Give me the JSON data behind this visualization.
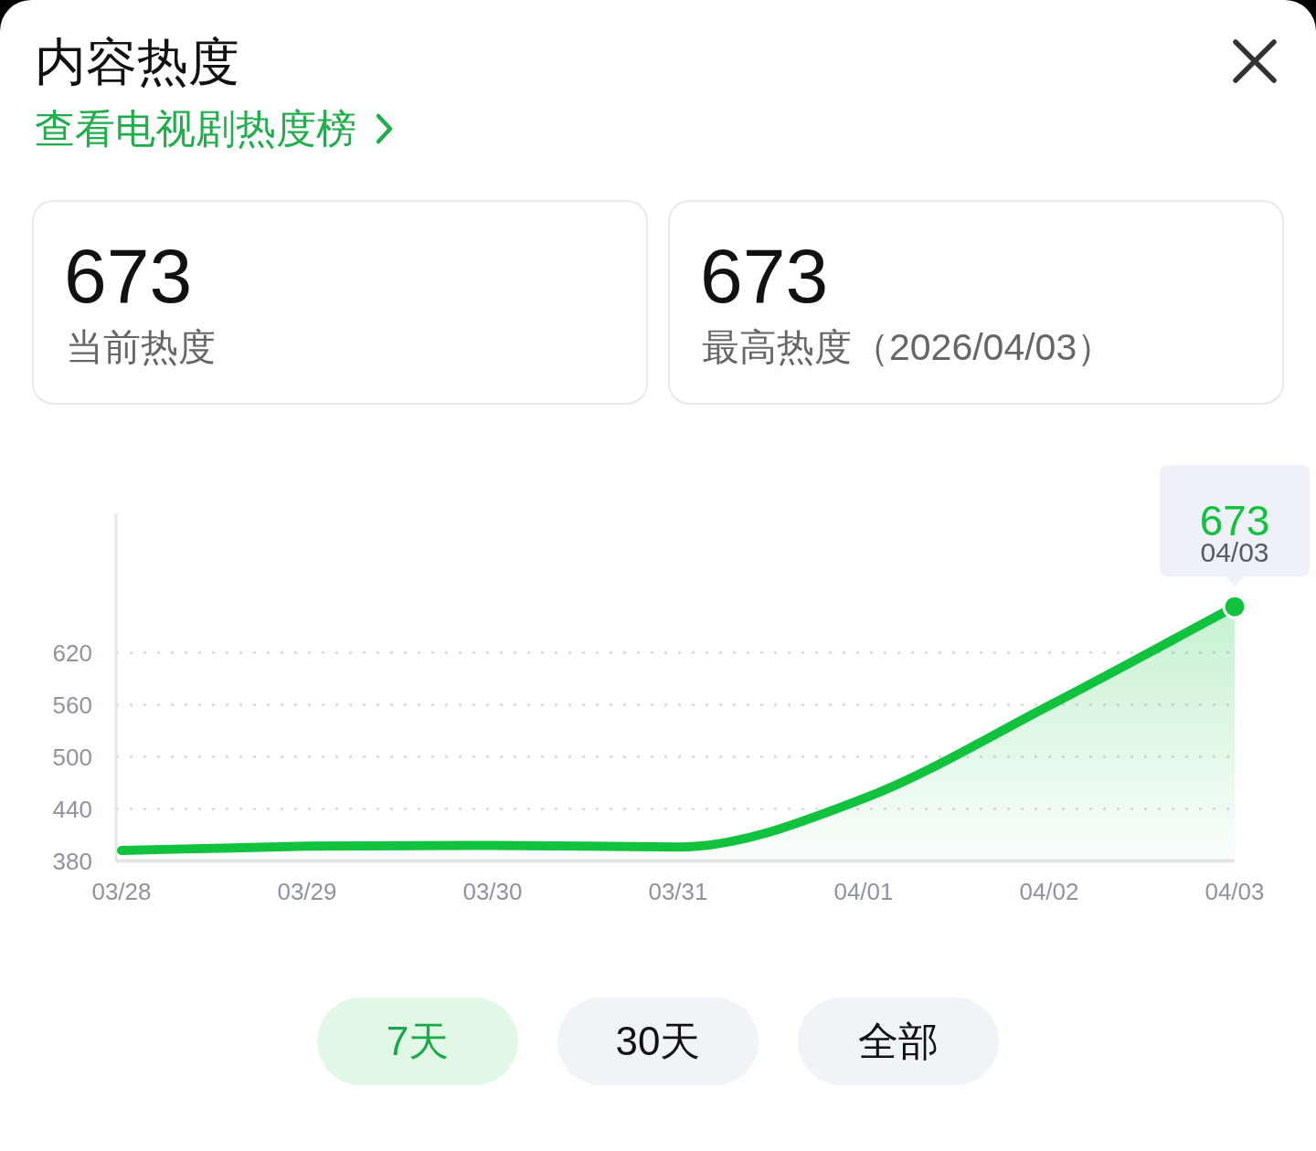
{
  "chart_data": {
    "type": "area",
    "title": "内容热度",
    "subtitle": "查看电视剧热度榜",
    "categories": [
      "03/28",
      "03/29",
      "03/30",
      "03/31",
      "04/01",
      "04/02",
      "04/03"
    ],
    "series": [
      {
        "color": "#10c23d",
        "values": [
          392,
          397,
          398,
          396,
          452,
          559,
          673
        ]
      }
    ],
    "ylim": [
      380,
      780
    ],
    "yticks": [
      380,
      440,
      500,
      560,
      620
    ],
    "grid": "y",
    "annotations": [
      "673",
      "当前热度",
      "673",
      "最高热度（2026/04/03）",
      {
        "text": "673",
        "x": "04/03",
        "y": 673
      },
      {
        "text": "04/03",
        "x": "04/03",
        "y": 673
      },
      "7天",
      "30天",
      "全部"
    ]
  }
}
